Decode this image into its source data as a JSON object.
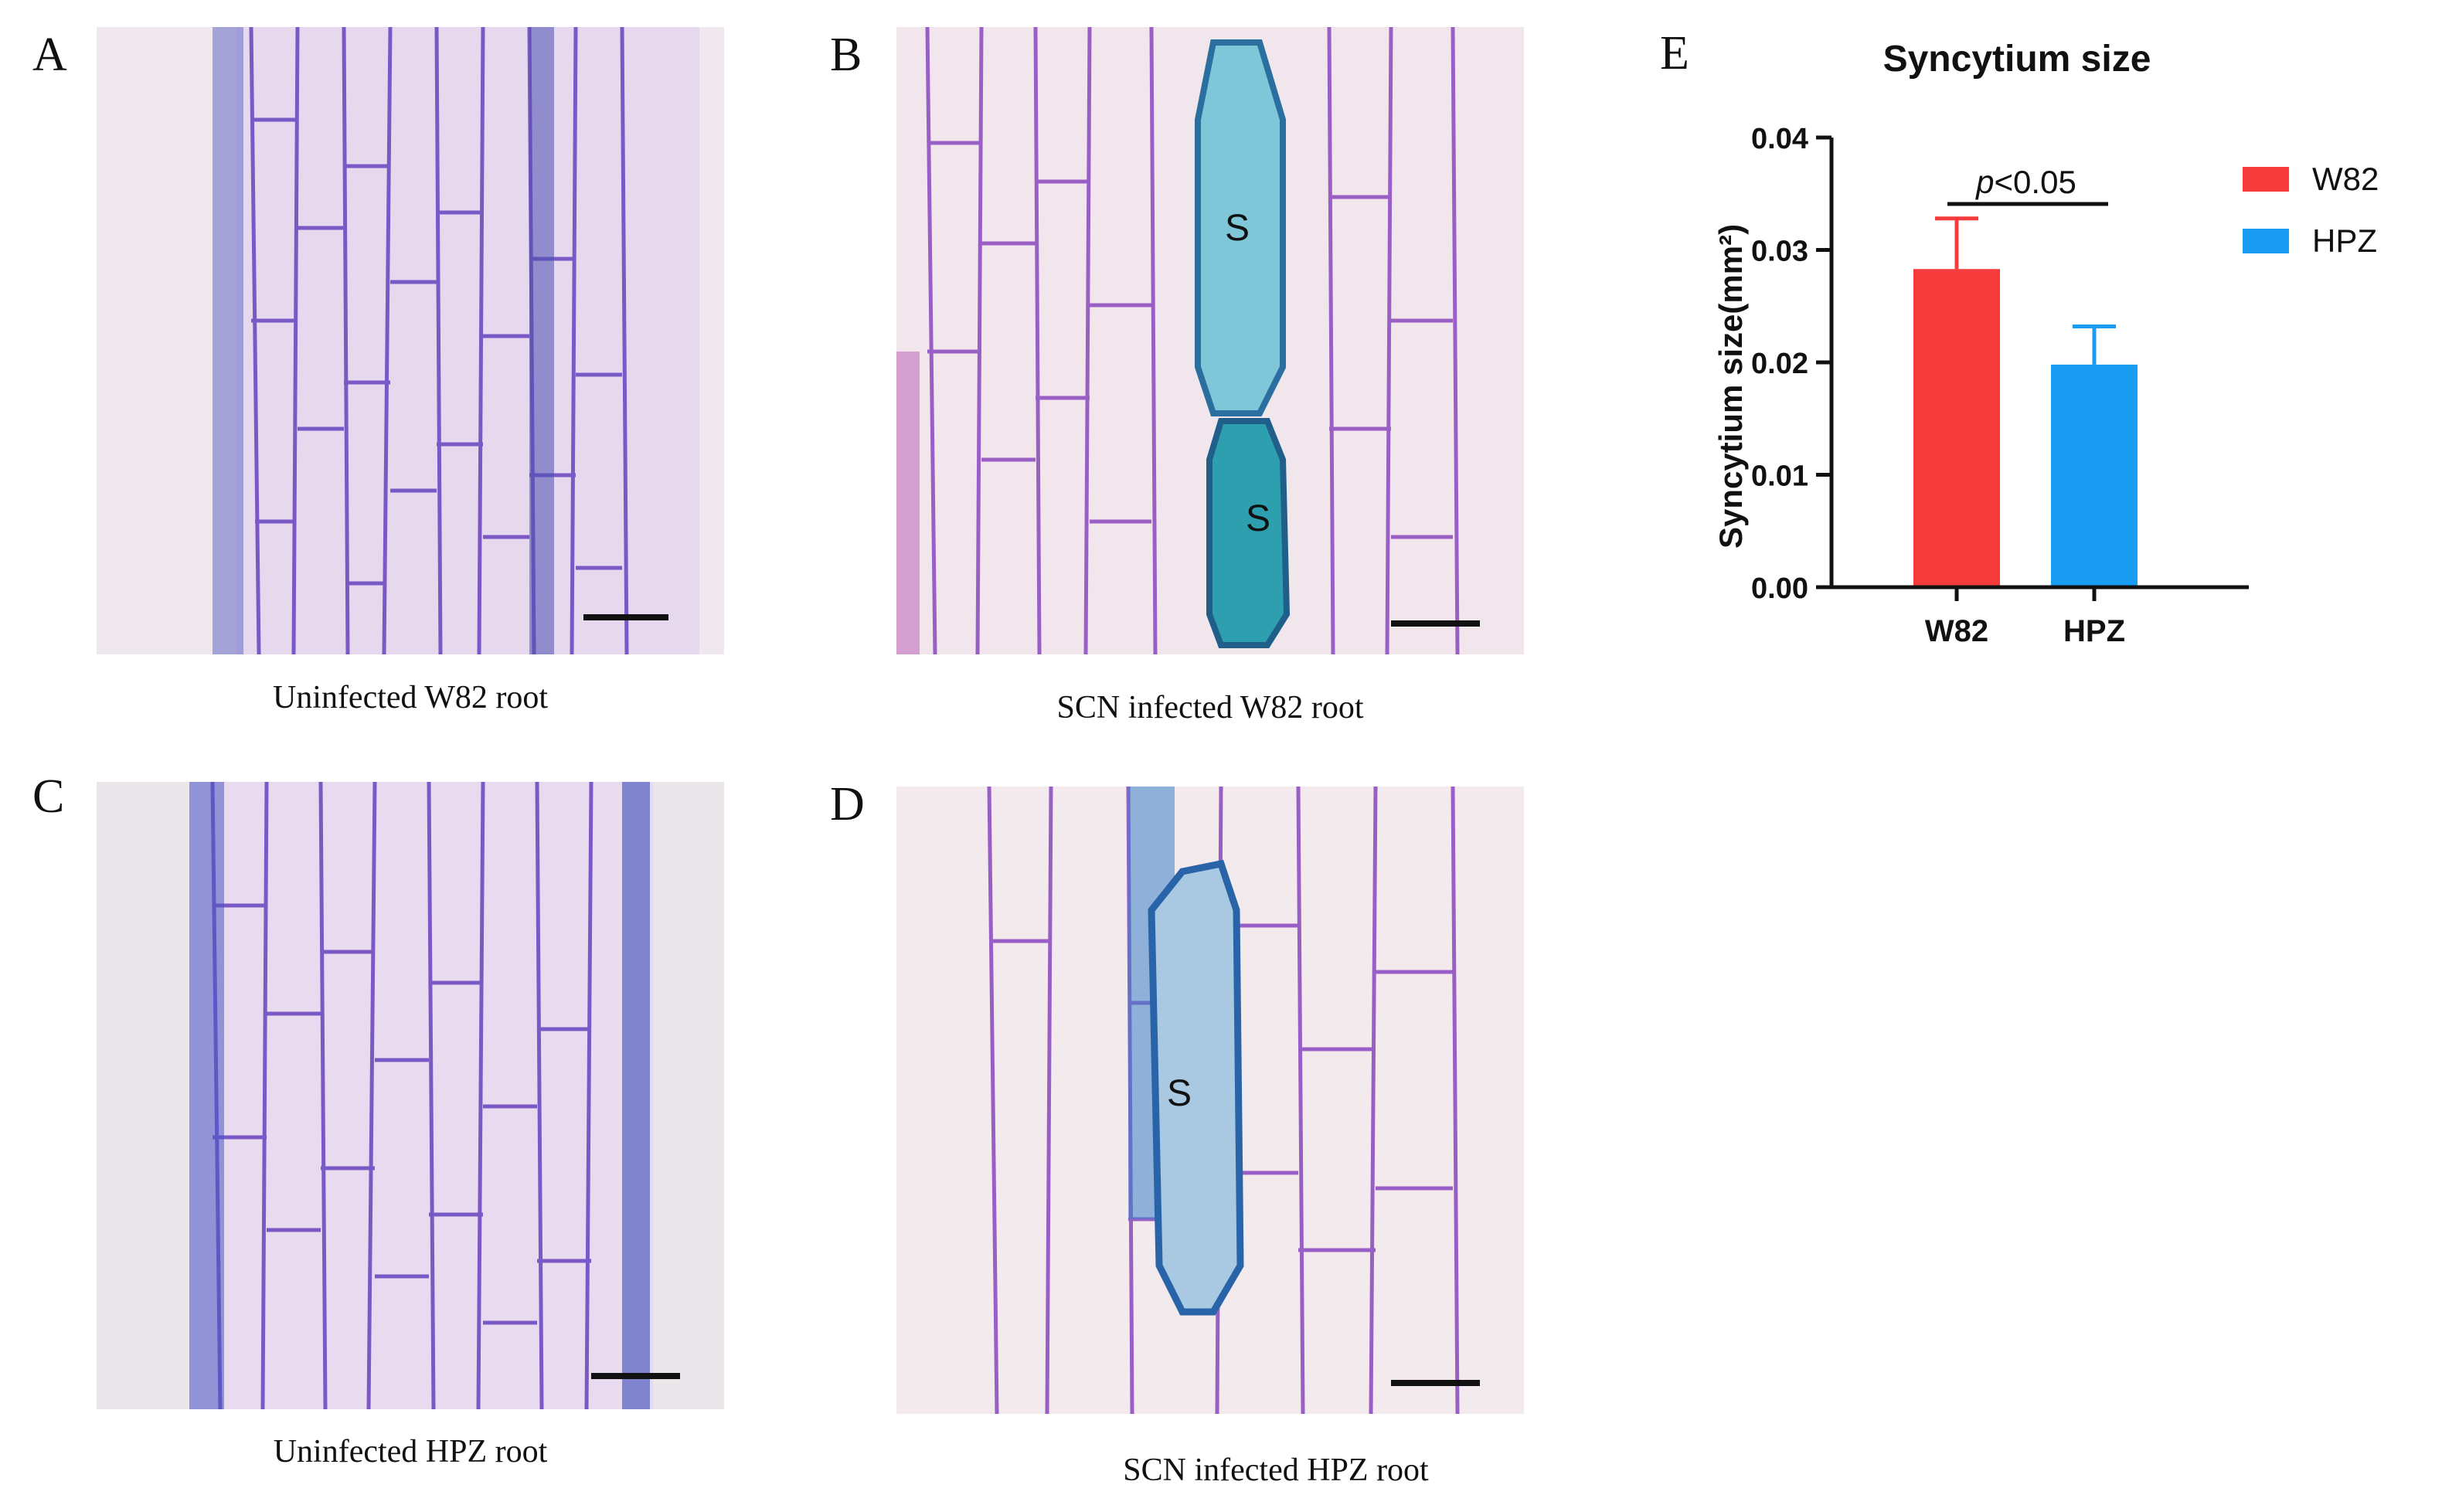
{
  "panels": [
    {
      "letter": "A",
      "caption": "Uninfected W82 root",
      "syncytia": []
    },
    {
      "letter": "B",
      "caption": "SCN infected W82 root",
      "syncytia": [
        "S",
        "S"
      ]
    },
    {
      "letter": "C",
      "caption": "Uninfected HPZ root",
      "syncytia": []
    },
    {
      "letter": "D",
      "caption": "SCN infected HPZ root",
      "syncytia": [
        "S"
      ]
    }
  ],
  "chart_letter": "E",
  "chart_data": {
    "type": "bar",
    "title": "Syncytium size",
    "ylabel": "Syncytium  size(mm²)",
    "xlabel": "",
    "categories": [
      "W82",
      "HPZ"
    ],
    "values": [
      0.0283,
      0.0198
    ],
    "errors": [
      0.0045,
      0.0034
    ],
    "colors": [
      "#f53b3b",
      "#1a9cf2"
    ],
    "ylim": [
      0,
      0.04
    ],
    "yticks": [
      "0.00",
      "0.01",
      "0.02",
      "0.03",
      "0.04"
    ],
    "legend": [
      {
        "name": "W82",
        "color": "#f53b3b"
      },
      {
        "name": "HPZ",
        "color": "#1a9cf2"
      }
    ],
    "legend_position": "right",
    "annotation": {
      "italic": "p",
      "text": "<0.05"
    }
  }
}
